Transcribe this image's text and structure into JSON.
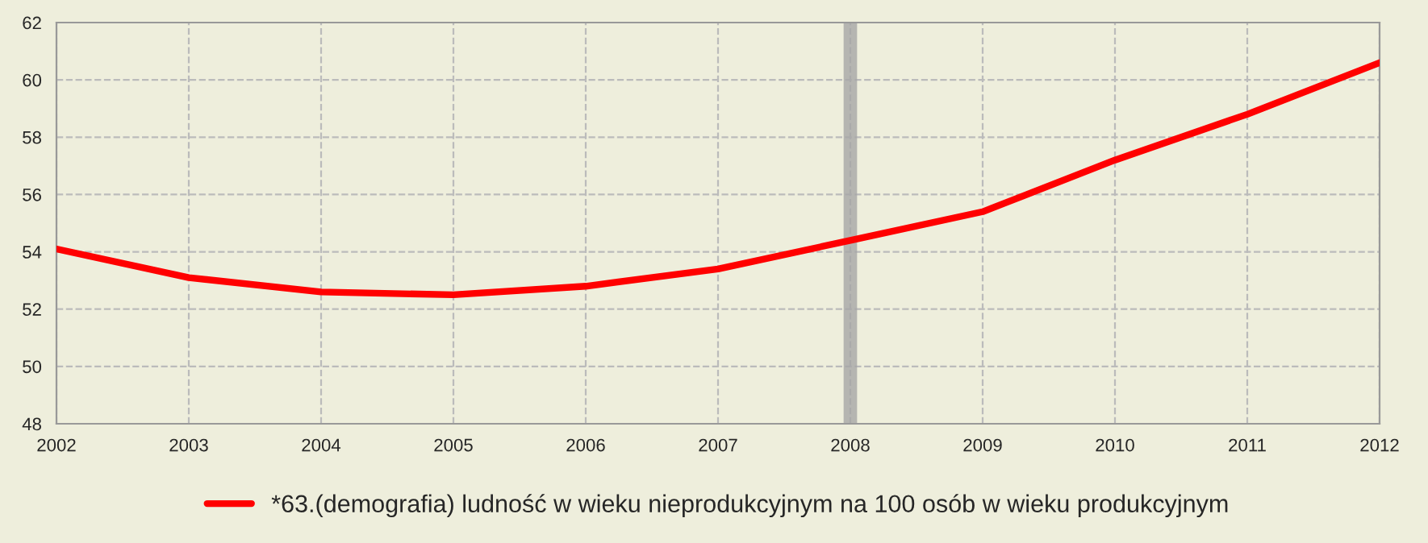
{
  "chart_data": {
    "type": "line",
    "x": [
      2002,
      2003,
      2004,
      2005,
      2006,
      2007,
      2008,
      2009,
      2010,
      2011,
      2012
    ],
    "series": [
      {
        "name": "*63.(demografia) ludność w wieku nieprodukcyjnym na 100 osób w wieku produkcyjnym",
        "color": "#ff0000",
        "values": [
          54.1,
          53.1,
          52.6,
          52.5,
          52.8,
          53.4,
          54.4,
          55.4,
          57.2,
          58.8,
          60.6
        ]
      }
    ],
    "xlim": [
      2002,
      2012
    ],
    "xticks": [
      2002,
      2003,
      2004,
      2005,
      2006,
      2007,
      2008,
      2009,
      2010,
      2011,
      2012
    ],
    "ylim": [
      48,
      62
    ],
    "yticks": [
      48,
      50,
      52,
      54,
      56,
      58,
      60,
      62
    ],
    "ref_lines": [
      {
        "axis": "x",
        "value": 2008,
        "color": "#a6a6a6"
      }
    ],
    "grid": true,
    "legend": "bottom",
    "marker": "none",
    "line_style": "solid"
  }
}
